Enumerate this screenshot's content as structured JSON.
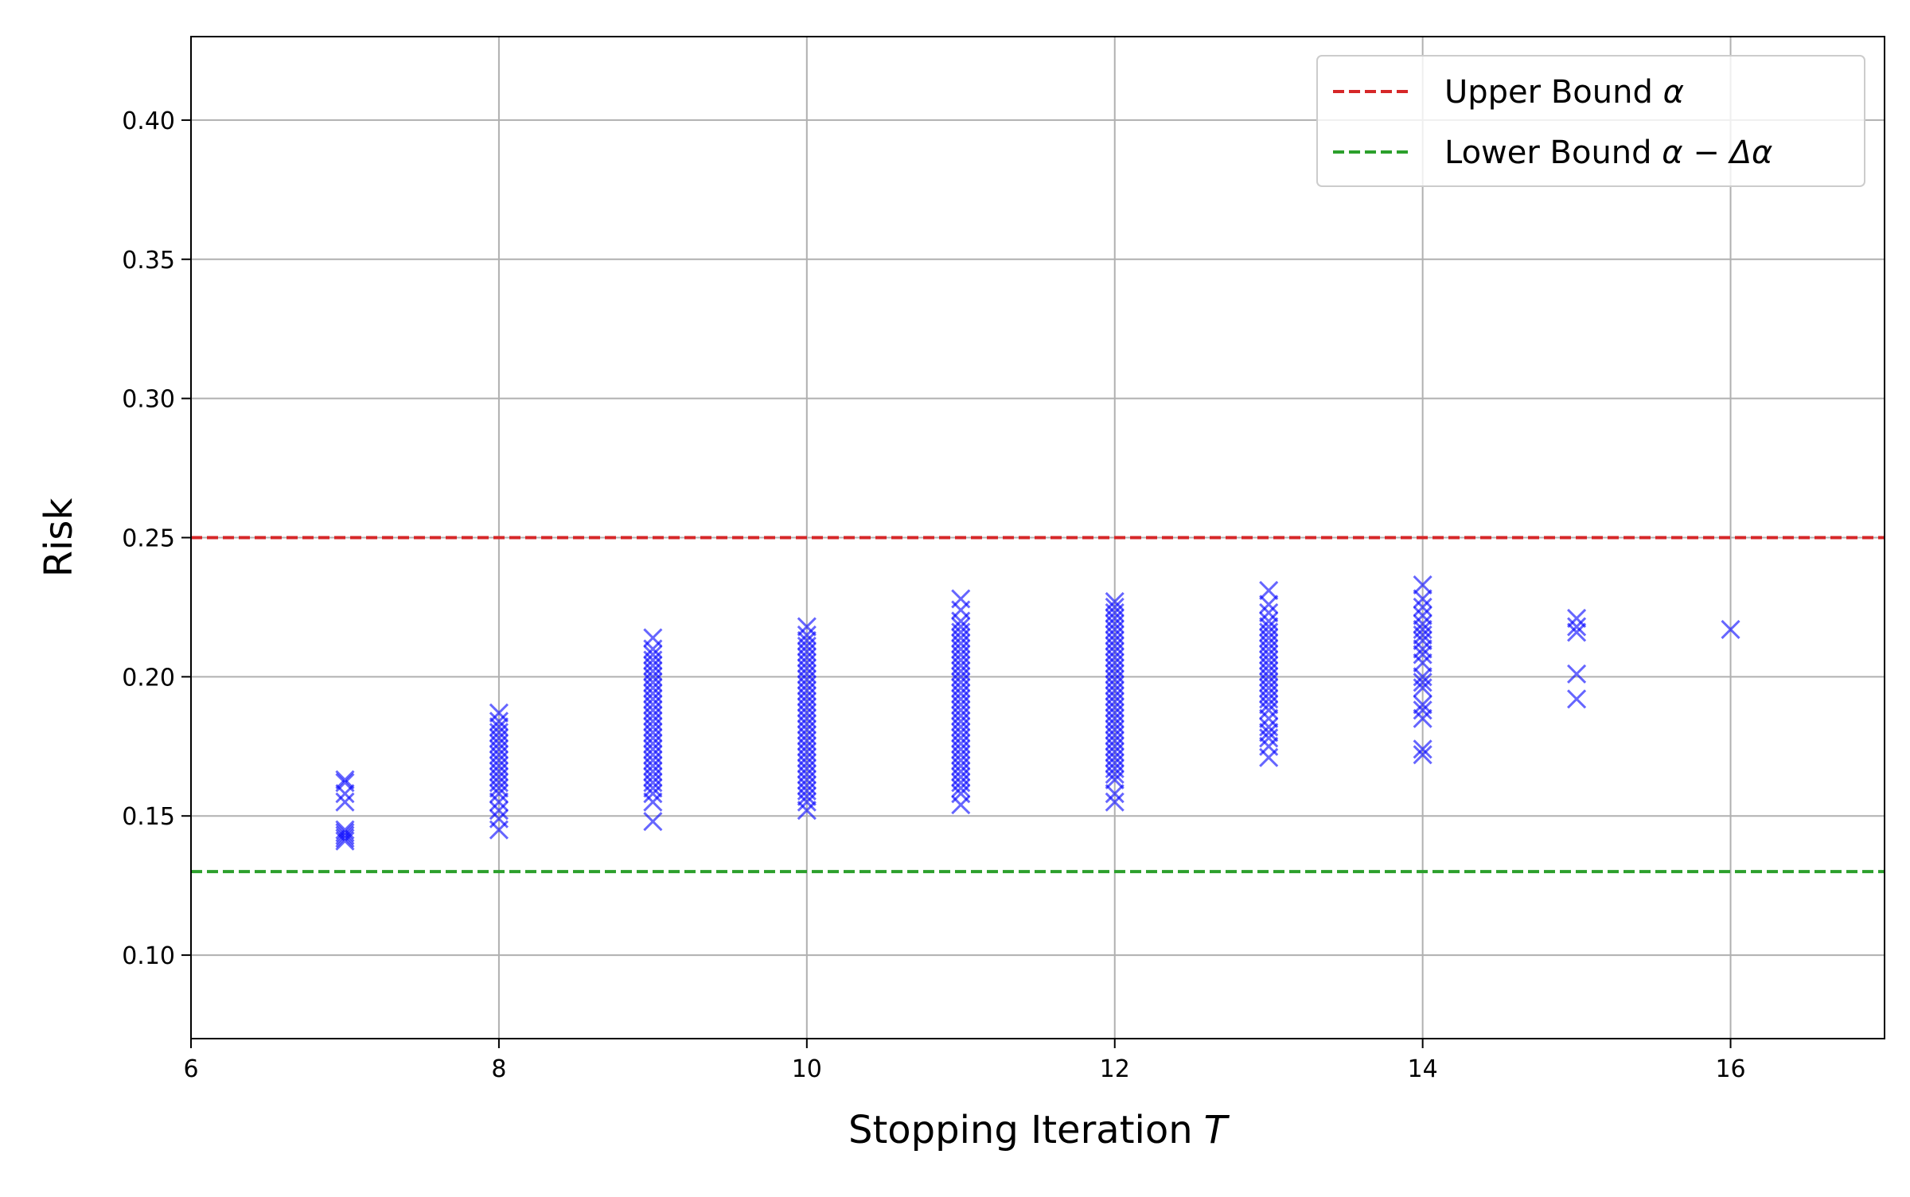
{
  "chart_data": {
    "type": "scatter",
    "title": "",
    "xlabel": "Stopping Iteration",
    "xlabel_var": "T",
    "ylabel": "Risk",
    "xlim": [
      6,
      17
    ],
    "ylim": [
      0.07,
      0.43
    ],
    "xticks": [
      6,
      8,
      10,
      12,
      14,
      16
    ],
    "xtick_labels": [
      "6",
      "8",
      "10",
      "12",
      "14",
      "16"
    ],
    "yticks": [
      0.1,
      0.15,
      0.2,
      0.25,
      0.3,
      0.35,
      0.4
    ],
    "ytick_labels": [
      "0.10",
      "0.15",
      "0.20",
      "0.25",
      "0.30",
      "0.35",
      "0.40"
    ],
    "grid": true,
    "legend_position": "top-right",
    "marker": "x",
    "series": [
      {
        "name": "",
        "color": "#0000ff",
        "clusters": [
          {
            "x": 7,
            "risk_values": [
              0.141,
              0.142,
              0.143,
              0.144,
              0.145,
              0.155,
              0.158,
              0.162,
              0.163
            ]
          },
          {
            "x": 8,
            "risk_values": [
              0.145,
              0.149,
              0.152,
              0.155,
              0.158,
              0.16,
              0.162,
              0.164,
              0.166,
              0.168,
              0.17,
              0.172,
              0.174,
              0.176,
              0.178,
              0.18,
              0.182,
              0.184,
              0.187
            ]
          },
          {
            "x": 9,
            "risk_values": [
              0.148,
              0.155,
              0.158,
              0.16,
              0.162,
              0.164,
              0.166,
              0.168,
              0.17,
              0.172,
              0.174,
              0.176,
              0.178,
              0.18,
              0.182,
              0.184,
              0.186,
              0.188,
              0.19,
              0.192,
              0.194,
              0.196,
              0.198,
              0.2,
              0.202,
              0.204,
              0.206,
              0.208,
              0.21,
              0.214
            ]
          },
          {
            "x": 10,
            "risk_values": [
              0.152,
              0.155,
              0.157,
              0.159,
              0.161,
              0.163,
              0.165,
              0.167,
              0.169,
              0.171,
              0.173,
              0.175,
              0.177,
              0.179,
              0.181,
              0.183,
              0.185,
              0.187,
              0.189,
              0.191,
              0.193,
              0.195,
              0.197,
              0.199,
              0.201,
              0.203,
              0.205,
              0.207,
              0.209,
              0.211,
              0.213,
              0.215,
              0.218
            ]
          },
          {
            "x": 11,
            "risk_values": [
              0.154,
              0.158,
              0.16,
              0.162,
              0.164,
              0.166,
              0.168,
              0.17,
              0.172,
              0.174,
              0.176,
              0.178,
              0.18,
              0.182,
              0.184,
              0.186,
              0.188,
              0.19,
              0.192,
              0.194,
              0.196,
              0.198,
              0.2,
              0.202,
              0.204,
              0.206,
              0.208,
              0.21,
              0.212,
              0.214,
              0.216,
              0.218,
              0.22,
              0.224,
              0.228
            ]
          },
          {
            "x": 12,
            "risk_values": [
              0.155,
              0.158,
              0.163,
              0.165,
              0.167,
              0.169,
              0.171,
              0.173,
              0.175,
              0.177,
              0.179,
              0.181,
              0.183,
              0.185,
              0.187,
              0.189,
              0.191,
              0.193,
              0.195,
              0.197,
              0.199,
              0.201,
              0.203,
              0.205,
              0.207,
              0.209,
              0.211,
              0.213,
              0.215,
              0.217,
              0.219,
              0.221,
              0.223,
              0.225,
              0.227
            ]
          },
          {
            "x": 13,
            "risk_values": [
              0.171,
              0.175,
              0.178,
              0.18,
              0.182,
              0.185,
              0.188,
              0.19,
              0.192,
              0.194,
              0.196,
              0.198,
              0.2,
              0.202,
              0.204,
              0.206,
              0.208,
              0.21,
              0.212,
              0.214,
              0.216,
              0.218,
              0.22,
              0.223,
              0.226,
              0.231
            ]
          },
          {
            "x": 14,
            "risk_values": [
              0.172,
              0.174,
              0.185,
              0.188,
              0.19,
              0.196,
              0.198,
              0.2,
              0.205,
              0.208,
              0.21,
              0.213,
              0.215,
              0.217,
              0.219,
              0.222,
              0.225,
              0.228,
              0.233
            ]
          },
          {
            "x": 15,
            "risk_values": [
              0.192,
              0.201,
              0.216,
              0.218,
              0.221
            ]
          },
          {
            "x": 16,
            "risk_values": [
              0.217
            ]
          }
        ]
      }
    ],
    "reference_lines": [
      {
        "name": "Upper Bound α",
        "label_text": "Upper Bound ",
        "label_math": "α",
        "y": 0.25,
        "color": "#d62728",
        "style": "dashed"
      },
      {
        "name": "Lower Bound α − Δα",
        "label_text": "Lower Bound ",
        "label_math": "α − Δα",
        "y": 0.13,
        "color": "#2ca02c",
        "style": "dashed"
      }
    ]
  }
}
